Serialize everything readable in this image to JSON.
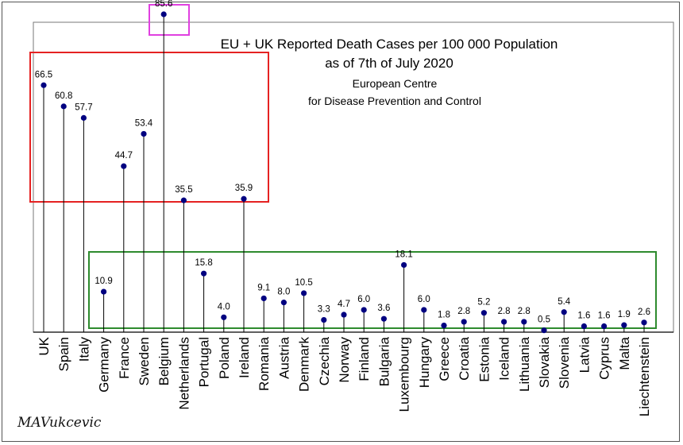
{
  "chart_data": {
    "type": "lollipop",
    "title": "EU + UK  Reported Death Cases per 100 000 Population",
    "title_line2": "as of 7th of July 2020",
    "subtitle_line1": "European Centre",
    "subtitle_line2": "for Disease Prevention and Control",
    "ylim": [
      0,
      85.6
    ],
    "grid": false,
    "categories": [
      "UK",
      "Spain",
      "Italy",
      "Germany",
      "France",
      "Sweden",
      "Belgium",
      "Netherlands",
      "Portugal",
      "Poland",
      "Ireland",
      "Romania",
      "Austria",
      "Denmark",
      "Czechia",
      "Norway",
      "Finland",
      "Bulgaria",
      "Luxembourg",
      "Hungary",
      "Greece",
      "Croatia",
      "Estonia",
      "Iceland",
      "Lithuania",
      "Slovakia",
      "Slovenia",
      "Latvia",
      "Cyprus",
      "Malta",
      "Liechtenstein"
    ],
    "values": [
      66.5,
      60.8,
      57.7,
      10.9,
      44.7,
      53.4,
      85.6,
      35.5,
      15.8,
      4.0,
      35.9,
      9.1,
      8.0,
      10.5,
      3.3,
      4.7,
      6.0,
      3.6,
      18.1,
      6.0,
      1.8,
      2.8,
      5.2,
      2.8,
      2.8,
      0.5,
      5.4,
      1.6,
      1.6,
      1.9,
      2.6
    ],
    "value_labels": [
      "66.5",
      "60.8",
      "57.7",
      "10.9",
      "44.7",
      "53.4",
      "85.6",
      "35.5",
      "15.8",
      "4.0",
      "35.9",
      "9.1",
      "8.0",
      "10.5",
      "3.3",
      "4.7",
      "6.0",
      "3.6",
      "18.1",
      "6.0",
      "1.8",
      "2.8",
      "5.2",
      "2.8",
      "2.8",
      "0.5",
      "5.4",
      "1.6",
      "1.6",
      "1.9",
      "2.6"
    ],
    "highlight_groups": [
      {
        "color": "#e52222",
        "members": [
          "UK",
          "Spain",
          "Italy",
          "France",
          "Sweden",
          "Netherlands",
          "Ireland"
        ]
      },
      {
        "color": "#e040e0",
        "members": [
          "Belgium"
        ]
      },
      {
        "color": "#2e8b2e",
        "members": [
          "Germany",
          "Portugal",
          "Poland",
          "Romania",
          "Austria",
          "Denmark",
          "Czechia",
          "Norway",
          "Finland",
          "Bulgaria",
          "Luxembourg",
          "Hungary",
          "Greece",
          "Croatia",
          "Estonia",
          "Iceland",
          "Lithuania",
          "Slovakia",
          "Slovenia",
          "Latvia",
          "Cyprus",
          "Malta",
          "Liechtenstein"
        ]
      }
    ],
    "marker_color": "#000080",
    "stem_color": "#000000"
  },
  "signature": "MAVukcevic"
}
